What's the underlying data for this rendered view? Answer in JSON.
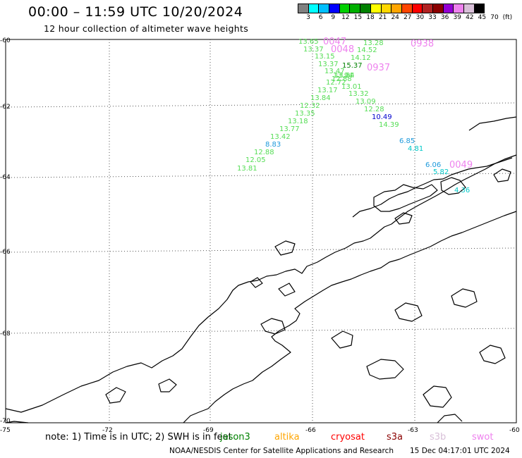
{
  "header": {
    "title": "00:00 – 11:59 UTC 10/20/2024",
    "subtitle": "12 hour collection of altimeter wave heights"
  },
  "colorbar": {
    "colors": [
      "#808080",
      "#00ffff",
      "#00bfff",
      "#0000ff",
      "#00d000",
      "#00b000",
      "#008000",
      "#ffff00",
      "#ffd700",
      "#ffa500",
      "#ff4500",
      "#ff0000",
      "#b22222",
      "#8b0000",
      "#9400d3",
      "#ee82ee",
      "#d8bfd8",
      "#000000"
    ],
    "labels": [
      "3",
      "6",
      "9",
      "12",
      "15",
      "18",
      "21",
      "24",
      "27",
      "30",
      "33",
      "36",
      "39",
      "42",
      "45",
      "70"
    ],
    "unit": "(ft)"
  },
  "map": {
    "lat_labels": [
      "-60",
      "-62",
      "-64",
      "-66",
      "-68",
      "-70"
    ],
    "lon_labels": [
      "-75",
      "-72",
      "-69",
      "-66",
      "-63",
      "-60"
    ],
    "measurements": [
      {
        "v": "13.65",
        "c": "#55dd55"
      },
      {
        "v": "13.37",
        "c": "#55dd55"
      },
      {
        "v": "13.15",
        "c": "#55dd55"
      },
      {
        "v": "13.37",
        "c": "#55dd55"
      },
      {
        "v": "13.47",
        "c": "#55dd55"
      },
      {
        "v": "13.84",
        "c": "#55dd55"
      },
      {
        "v": "12.88",
        "c": "#55dd55"
      },
      {
        "v": "12.72",
        "c": "#55dd55"
      },
      {
        "v": "13.17",
        "c": "#55dd55"
      },
      {
        "v": "13.84",
        "c": "#55dd55"
      },
      {
        "v": "12.32",
        "c": "#55dd55"
      },
      {
        "v": "13.35",
        "c": "#55dd55"
      },
      {
        "v": "13.18",
        "c": "#55dd55"
      },
      {
        "v": "13.77",
        "c": "#55dd55"
      },
      {
        "v": "13.42",
        "c": "#55dd55"
      },
      {
        "v": "8.83",
        "c": "#1e9adc"
      },
      {
        "v": "12.88",
        "c": "#55dd55"
      },
      {
        "v": "12.05",
        "c": "#55dd55"
      },
      {
        "v": "13.81",
        "c": "#55dd55"
      },
      {
        "v": "13.28",
        "c": "#55dd55"
      },
      {
        "v": "14.52",
        "c": "#55dd55"
      },
      {
        "v": "14.12",
        "c": "#55dd55"
      },
      {
        "v": "15.37",
        "c": "#008000"
      },
      {
        "v": "13.94",
        "c": "#55dd55"
      },
      {
        "v": "13.01",
        "c": "#55dd55"
      },
      {
        "v": "13.32",
        "c": "#55dd55"
      },
      {
        "v": "13.09",
        "c": "#55dd55"
      },
      {
        "v": "12.28",
        "c": "#55dd55"
      },
      {
        "v": "10.49",
        "c": "#0000cc"
      },
      {
        "v": "14.39",
        "c": "#55dd55"
      },
      {
        "v": "6.85",
        "c": "#1e9adc"
      },
      {
        "v": "4.81",
        "c": "#00c8c8"
      },
      {
        "v": "6.06",
        "c": "#1e9adc"
      },
      {
        "v": "5.82",
        "c": "#00c8c8"
      },
      {
        "v": "4.36",
        "c": "#00c8c8"
      }
    ],
    "time_tags": [
      {
        "t": "0047",
        "c": "#ee82ee"
      },
      {
        "t": "0048",
        "c": "#ee82ee"
      },
      {
        "t": "0938",
        "c": "#ee82ee"
      },
      {
        "t": "0937",
        "c": "#ee82ee"
      },
      {
        "t": "0049",
        "c": "#ee82ee"
      }
    ]
  },
  "legend": {
    "note": "note: 1) Time is in UTC; 2) SWH is in feet",
    "satellites": [
      {
        "name": "jason3",
        "color": "#008000"
      },
      {
        "name": "altika",
        "color": "#ffa500"
      },
      {
        "name": "cryosat",
        "color": "#ff0000"
      },
      {
        "name": "s3a",
        "color": "#8b0000"
      },
      {
        "name": "s3b",
        "color": "#d8bfd8"
      },
      {
        "name": "swot",
        "color": "#ee82ee"
      }
    ]
  },
  "footer": {
    "credit": "NOAA/NESDIS Center for Satellite Applications and Research",
    "timestamp": "15 Dec 04:17:01 UTC 2024"
  }
}
